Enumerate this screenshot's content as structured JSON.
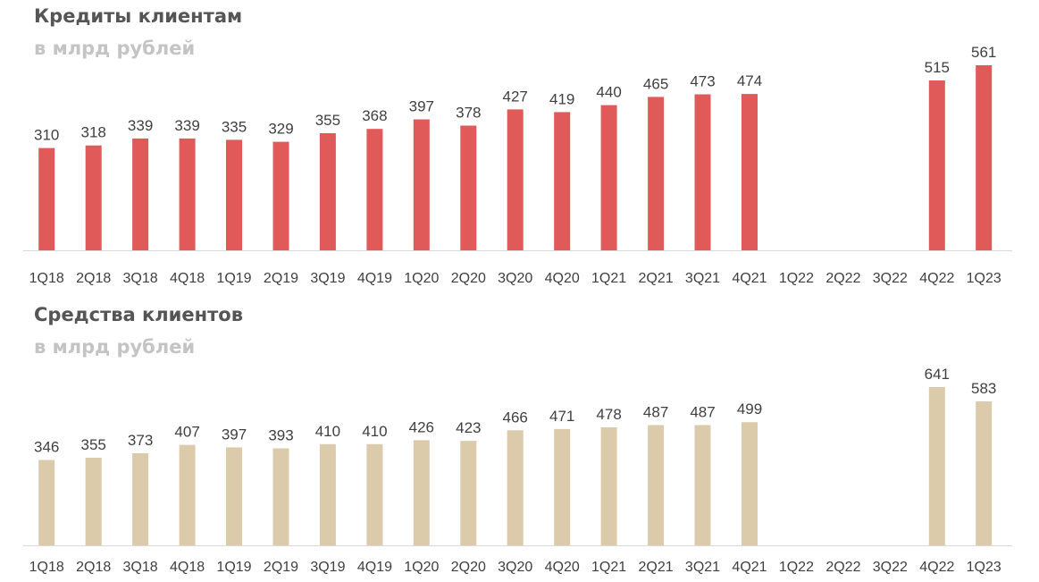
{
  "chart_data": [
    {
      "type": "bar",
      "title": "Кредиты клиентам",
      "subtitle": "в млрд рублей",
      "categories": [
        "1Q18",
        "2Q18",
        "3Q18",
        "4Q18",
        "1Q19",
        "2Q19",
        "3Q19",
        "4Q19",
        "1Q20",
        "2Q20",
        "3Q20",
        "4Q20",
        "1Q21",
        "2Q21",
        "3Q21",
        "4Q21",
        "1Q22",
        "2Q22",
        "3Q22",
        "4Q22",
        "1Q23"
      ],
      "values": [
        310,
        318,
        339,
        339,
        335,
        329,
        355,
        368,
        397,
        378,
        427,
        419,
        440,
        465,
        473,
        474,
        null,
        null,
        null,
        515,
        561
      ],
      "bar_color": "#e05a5a",
      "ylim": [
        0,
        561
      ],
      "grid": false,
      "legend": "none"
    },
    {
      "type": "bar",
      "title": "Средства клиентов",
      "subtitle": "в млрд рублей",
      "categories": [
        "1Q18",
        "2Q18",
        "3Q18",
        "4Q18",
        "1Q19",
        "2Q19",
        "3Q19",
        "4Q19",
        "1Q20",
        "2Q20",
        "3Q20",
        "4Q20",
        "1Q21",
        "2Q21",
        "3Q21",
        "4Q21",
        "1Q22",
        "2Q22",
        "3Q22",
        "4Q22",
        "1Q23"
      ],
      "values": [
        346,
        355,
        373,
        407,
        397,
        393,
        410,
        410,
        426,
        423,
        466,
        471,
        478,
        487,
        487,
        499,
        null,
        null,
        null,
        641,
        583
      ],
      "bar_color": "#dccbab",
      "ylim": [
        0,
        641
      ],
      "grid": false,
      "legend": "none"
    }
  ]
}
